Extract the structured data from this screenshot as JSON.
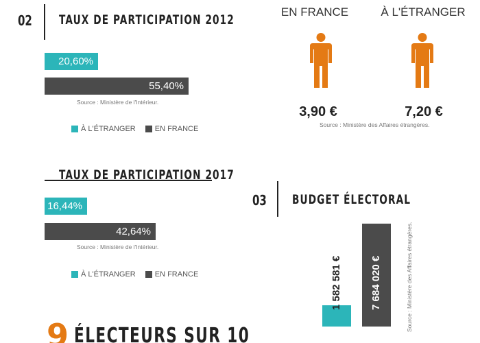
{
  "section_2012": {
    "number": "02",
    "title": "TAUX DE PARTICIPATION 2012",
    "source": "Source : Ministère de l'Intérieur."
  },
  "section_2017": {
    "title": "TAUX DE PARTICIPATION 2017",
    "source": "Source : Ministère de l'Intérieur."
  },
  "legend": {
    "abroad": "À L'ÉTRANGER",
    "france": "EN FRANCE"
  },
  "cost": {
    "france_label": "EN FRANCE",
    "abroad_label": "À L'ÉTRANGER",
    "france_value": "3,90 €",
    "abroad_value": "7,20 €",
    "source": "Source : Ministère des Affaires étrangères.",
    "person_color": "#e47a14"
  },
  "section_budget": {
    "number": "03",
    "title": "BUDGET ÉLECTORAL",
    "source": "Source : Ministère des Affaires étrangères."
  },
  "bottom": {
    "big_number": "9",
    "title": "ÉLECTEURS SUR 10"
  },
  "colors": {
    "abroad": "#2cb5b9",
    "france": "#4b4b4b",
    "accent": "#e47a14"
  },
  "chart_data": [
    {
      "type": "bar",
      "orientation": "horizontal",
      "title": "TAUX DE PARTICIPATION 2012",
      "categories": [
        "À L'ÉTRANGER",
        "EN FRANCE"
      ],
      "values": [
        20.6,
        55.4
      ],
      "labels": [
        "20,60%",
        "55,40%"
      ],
      "unit": "%"
    },
    {
      "type": "bar",
      "orientation": "horizontal",
      "title": "TAUX DE PARTICIPATION 2017",
      "categories": [
        "À L'ÉTRANGER",
        "EN FRANCE"
      ],
      "values": [
        16.44,
        42.64
      ],
      "labels": [
        "16,44%",
        "42,64%"
      ],
      "unit": "%"
    },
    {
      "type": "bar",
      "orientation": "vertical",
      "title": "BUDGET ÉLECTORAL",
      "categories": [
        "À L'ÉTRANGER",
        "EN FRANCE"
      ],
      "values": [
        1582581,
        7684020
      ],
      "labels": [
        "1 582 581 €",
        "7 684 020 €"
      ],
      "unit": "€"
    }
  ]
}
